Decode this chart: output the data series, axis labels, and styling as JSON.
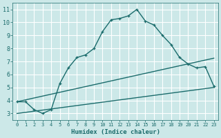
{
  "xlabel": "Humidex (Indice chaleur)",
  "bg_color": "#cce8e8",
  "grid_color": "#ffffff",
  "line_color": "#1a6b6b",
  "xlim": [
    -0.5,
    23.5
  ],
  "ylim": [
    2.5,
    11.5
  ],
  "xticks": [
    0,
    1,
    2,
    3,
    4,
    5,
    6,
    7,
    8,
    9,
    10,
    11,
    12,
    13,
    14,
    15,
    16,
    17,
    18,
    19,
    20,
    21,
    22,
    23
  ],
  "yticks": [
    3,
    4,
    5,
    6,
    7,
    8,
    9,
    10,
    11
  ],
  "series1_x": [
    0,
    1,
    2,
    3,
    4,
    5,
    6,
    7,
    8,
    9,
    10,
    11,
    12,
    13,
    14,
    15,
    16,
    17,
    18,
    19,
    20,
    21,
    22,
    23
  ],
  "series1_y": [
    3.9,
    3.9,
    3.3,
    3.0,
    3.3,
    5.3,
    6.5,
    7.3,
    7.5,
    8.0,
    9.3,
    10.2,
    10.3,
    10.5,
    11.0,
    10.1,
    9.8,
    9.0,
    8.3,
    7.3,
    6.8,
    6.5,
    6.6,
    5.1
  ],
  "series2_x": [
    0,
    23
  ],
  "series2_y": [
    3.9,
    7.25
  ],
  "series3_x": [
    0,
    23
  ],
  "series3_y": [
    3.0,
    5.0
  ],
  "marker": "+"
}
